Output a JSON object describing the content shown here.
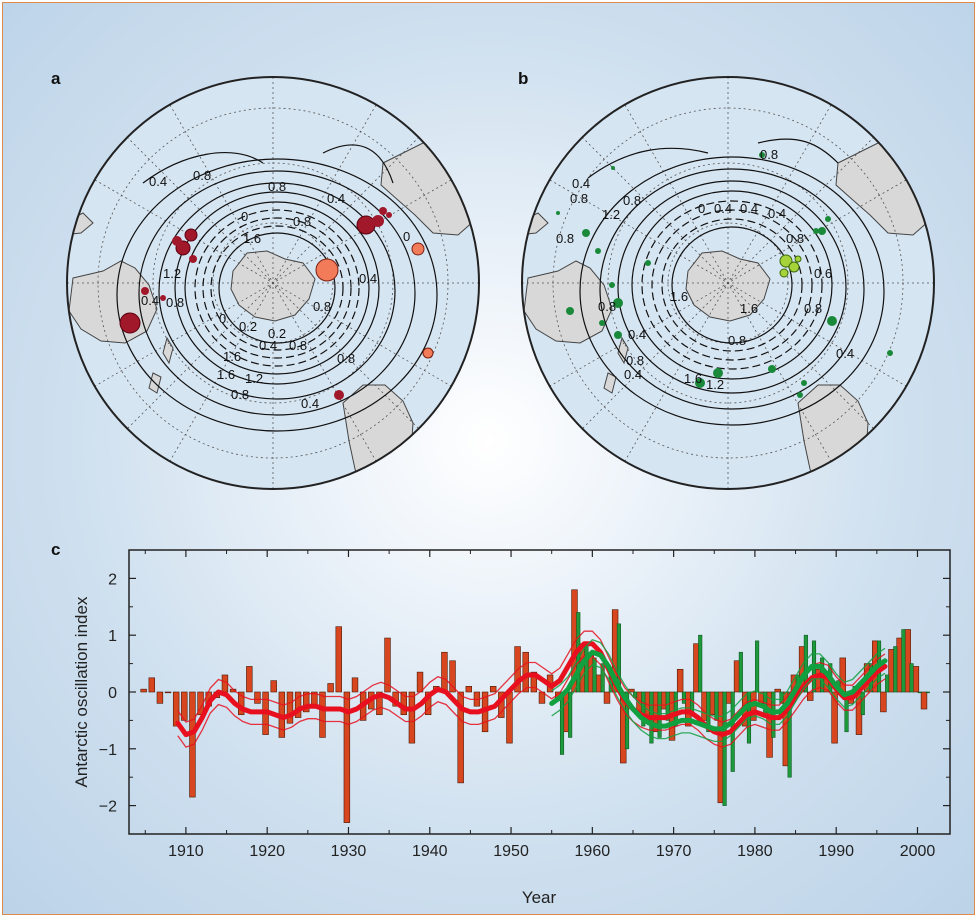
{
  "panels": {
    "a": {
      "letter": "a",
      "contour_labels": [
        "0.4",
        "0.8",
        "0.8",
        "0.4",
        "0",
        "0.8",
        "1.2",
        "1.6",
        "0.4",
        "0.8",
        "1.2",
        "0.4",
        "0",
        "1.6",
        "0.2",
        "0",
        "0.2",
        "0.4",
        "0.8",
        "1.6",
        "1.2",
        "0.8",
        "0.8",
        "0.4",
        "0.8",
        "0.4",
        "0"
      ]
    },
    "b": {
      "letter": "b",
      "contour_labels": [
        "0.8",
        "0.4",
        "0.8",
        "1.2",
        "0.8",
        "0",
        "0.4",
        "0.4",
        "0.8",
        "0.4",
        "0.8",
        "0.6",
        "1.6",
        "0.8",
        "1.6",
        "0.8",
        "0.4",
        "0.8",
        "0.4",
        "1.6",
        "1.2",
        "0.8",
        "0.4",
        "0.4"
      ]
    },
    "c": {
      "letter": "c"
    }
  },
  "colors": {
    "red_bar": "#d7461e",
    "red_line": "#e8101e",
    "green_bar": "#1e9a3c",
    "green_line": "#10a040",
    "ocean": "#d6e5f2",
    "land": "#d8d8d8",
    "frame": "#e08a4a"
  },
  "chart_data": {
    "type": "bar",
    "xlabel": "Year",
    "ylabel": "Antarctic oscillation index",
    "xlim": [
      1903,
      2004
    ],
    "ylim": [
      -2.5,
      2.5
    ],
    "x_ticks": [
      1910,
      1920,
      1930,
      1940,
      1950,
      1960,
      1970,
      1980,
      1990,
      2000
    ],
    "y_ticks": [
      -2,
      -1,
      0,
      1,
      2
    ],
    "grid": false,
    "series": [
      {
        "name": "",
        "kind": "bar",
        "color": "#d7461e",
        "x": [
          1905,
          1906,
          1907,
          1908,
          1909,
          1910,
          1911,
          1912,
          1913,
          1914,
          1915,
          1916,
          1917,
          1918,
          1919,
          1920,
          1921,
          1922,
          1923,
          1924,
          1925,
          1926,
          1927,
          1928,
          1929,
          1930,
          1931,
          1932,
          1933,
          1934,
          1935,
          1936,
          1937,
          1938,
          1939,
          1940,
          1941,
          1942,
          1943,
          1944,
          1945,
          1946,
          1947,
          1948,
          1949,
          1950,
          1951,
          1952,
          1953,
          1954,
          1955,
          1956,
          1957,
          1958,
          1959,
          1960,
          1961,
          1962,
          1963,
          1964,
          1965,
          1966,
          1967,
          1968,
          1969,
          1970,
          1971,
          1972,
          1973,
          1974,
          1975,
          1976,
          1977,
          1978,
          1979,
          1980,
          1981,
          1982,
          1983,
          1984,
          1985,
          1986,
          1987,
          1988,
          1989,
          1990,
          1991,
          1992,
          1993,
          1994,
          1995,
          1996,
          1997,
          1998,
          1999,
          2000,
          2001
        ],
        "values": [
          0.05,
          0.25,
          -0.2,
          0.0,
          -0.6,
          -0.5,
          -1.85,
          -0.4,
          -0.25,
          -0.1,
          0.3,
          0.05,
          -0.4,
          0.45,
          -0.2,
          -0.75,
          0.2,
          -0.8,
          -0.55,
          -0.45,
          -0.35,
          -0.25,
          -0.8,
          0.15,
          1.15,
          -2.3,
          0.25,
          -0.5,
          -0.3,
          -0.4,
          0.95,
          -0.25,
          -0.4,
          -0.9,
          0.35,
          -0.4,
          0.1,
          0.7,
          0.55,
          -1.6,
          0.1,
          -0.25,
          -0.7,
          0.1,
          -0.45,
          -0.9,
          0.8,
          0.7,
          0.35,
          -0.2,
          0.3,
          -0.15,
          -0.7,
          1.8,
          0.85,
          0.65,
          0.3,
          -0.2,
          1.45,
          -1.25,
          0.05,
          -0.4,
          -0.5,
          -0.7,
          -0.3,
          -0.85,
          0.4,
          -0.6,
          0.85,
          -0.5,
          -0.4,
          -1.95,
          -0.2,
          0.55,
          -0.6,
          -0.5,
          -0.2,
          -1.15,
          0.05,
          -1.3,
          0.3,
          0.8,
          -0.15,
          0.4,
          0.35,
          -0.9,
          0.6,
          -0.2,
          -0.75,
          0.5,
          0.9,
          -0.35,
          0.75,
          0.95,
          1.1,
          0.45,
          -0.3
        ]
      },
      {
        "name": "",
        "kind": "bar",
        "color": "#1e9a3c",
        "x": [
          1956,
          1957,
          1958,
          1959,
          1960,
          1961,
          1962,
          1963,
          1964,
          1965,
          1966,
          1967,
          1968,
          1969,
          1970,
          1971,
          1972,
          1973,
          1974,
          1975,
          1976,
          1977,
          1978,
          1979,
          1980,
          1981,
          1982,
          1983,
          1984,
          1985,
          1986,
          1987,
          1988,
          1989,
          1990,
          1991,
          1992,
          1993,
          1994,
          1995,
          1996,
          1997,
          1998,
          1999,
          2000,
          2001
        ],
        "values": [
          -1.1,
          -0.8,
          1.4,
          0.8,
          0.6,
          0.5,
          0.3,
          1.2,
          -1.0,
          -0.1,
          -0.6,
          -0.9,
          -0.8,
          -0.5,
          -0.6,
          -0.2,
          -0.4,
          1.0,
          -0.7,
          -0.5,
          -2.0,
          -1.4,
          0.7,
          -0.9,
          0.9,
          -0.4,
          -0.8,
          -0.2,
          -1.5,
          0.3,
          1.0,
          0.9,
          0.6,
          0.5,
          0.2,
          -0.7,
          0.1,
          -0.4,
          0.5,
          0.9,
          0.3,
          0.8,
          1.1,
          0.5,
          0.0,
          0.0
        ]
      },
      {
        "name": "",
        "kind": "line",
        "color": "#e8101e",
        "x": [
          1909,
          1910,
          1911,
          1912,
          1913,
          1914,
          1915,
          1916,
          1917,
          1918,
          1919,
          1920,
          1921,
          1922,
          1923,
          1924,
          1925,
          1926,
          1927,
          1928,
          1929,
          1930,
          1931,
          1932,
          1933,
          1934,
          1935,
          1936,
          1937,
          1938,
          1939,
          1940,
          1941,
          1942,
          1943,
          1944,
          1945,
          1946,
          1947,
          1948,
          1949,
          1950,
          1951,
          1952,
          1953,
          1954,
          1955,
          1956,
          1957,
          1958,
          1959,
          1960,
          1961,
          1962,
          1963,
          1964,
          1965,
          1966,
          1967,
          1968,
          1969,
          1970,
          1971,
          1972,
          1973,
          1974,
          1975,
          1976,
          1977,
          1978,
          1979,
          1980,
          1981,
          1982,
          1983,
          1984,
          1985,
          1986,
          1987,
          1988,
          1989,
          1990,
          1991,
          1992,
          1993,
          1994,
          1995,
          1996
        ],
        "values": [
          -0.55,
          -0.75,
          -0.7,
          -0.45,
          -0.15,
          0.0,
          -0.05,
          -0.2,
          -0.3,
          -0.35,
          -0.35,
          -0.35,
          -0.4,
          -0.45,
          -0.4,
          -0.3,
          -0.25,
          -0.25,
          -0.3,
          -0.3,
          -0.3,
          -0.35,
          -0.3,
          -0.2,
          -0.1,
          -0.05,
          -0.1,
          -0.2,
          -0.3,
          -0.3,
          -0.2,
          -0.05,
          0.05,
          0.0,
          -0.15,
          -0.3,
          -0.35,
          -0.35,
          -0.3,
          -0.25,
          -0.1,
          0.05,
          0.2,
          0.3,
          0.3,
          0.2,
          0.1,
          0.2,
          0.45,
          0.7,
          0.85,
          0.85,
          0.7,
          0.4,
          0.1,
          -0.15,
          -0.3,
          -0.4,
          -0.45,
          -0.45,
          -0.45,
          -0.4,
          -0.35,
          -0.35,
          -0.45,
          -0.6,
          -0.7,
          -0.75,
          -0.7,
          -0.55,
          -0.4,
          -0.35,
          -0.4,
          -0.45,
          -0.45,
          -0.3,
          -0.1,
          0.1,
          0.25,
          0.3,
          0.25,
          0.05,
          -0.1,
          -0.1,
          0.05,
          0.2,
          0.35,
          0.45
        ]
      },
      {
        "name": "",
        "kind": "line",
        "color": "#10a040",
        "x": [
          1955,
          1956,
          1957,
          1958,
          1959,
          1960,
          1961,
          1962,
          1963,
          1964,
          1965,
          1966,
          1967,
          1968,
          1969,
          1970,
          1971,
          1972,
          1973,
          1974,
          1975,
          1976,
          1977,
          1978,
          1979,
          1980,
          1981,
          1982,
          1983,
          1984,
          1985,
          1986,
          1987,
          1988,
          1989,
          1990,
          1991,
          1992,
          1993,
          1994,
          1995,
          1996
        ],
        "values": [
          -0.2,
          -0.1,
          0.05,
          0.3,
          0.55,
          0.7,
          0.65,
          0.45,
          0.15,
          -0.1,
          -0.3,
          -0.45,
          -0.55,
          -0.6,
          -0.6,
          -0.55,
          -0.5,
          -0.5,
          -0.55,
          -0.6,
          -0.65,
          -0.65,
          -0.55,
          -0.4,
          -0.25,
          -0.2,
          -0.25,
          -0.35,
          -0.35,
          -0.2,
          0.05,
          0.3,
          0.45,
          0.45,
          0.3,
          0.1,
          -0.05,
          0.0,
          0.15,
          0.3,
          0.45,
          0.55
        ]
      }
    ]
  }
}
